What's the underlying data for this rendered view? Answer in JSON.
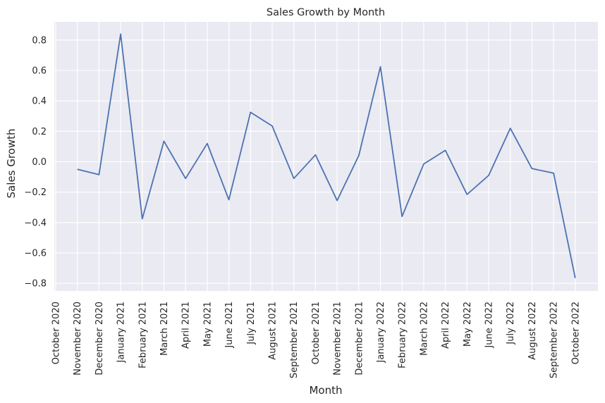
{
  "chart_data": {
    "type": "line",
    "title": "Sales Growth by Month",
    "xlabel": "Month",
    "ylabel": "Sales Growth",
    "grid": true,
    "ylim": [
      -0.85,
      0.92
    ],
    "yticks": [
      "0.8",
      "0.6",
      "0.4",
      "0.2",
      "0.0",
      "−0.2",
      "−0.4",
      "−0.6",
      "−0.8"
    ],
    "ytick_values": [
      0.8,
      0.6,
      0.4,
      0.2,
      0.0,
      -0.2,
      -0.4,
      -0.6,
      -0.8
    ],
    "categories": [
      "October 2020",
      "November 2020",
      "December 2020",
      "January 2021",
      "February 2021",
      "March 2021",
      "April 2021",
      "May 2021",
      "June 2021",
      "July 2021",
      "August 2021",
      "September 2021",
      "October 2021",
      "November 2021",
      "December 2021",
      "January 2022",
      "February 2022",
      "March 2022",
      "April 2022",
      "May 2022",
      "June 2022",
      "July 2022",
      "August 2022",
      "September 2022",
      "October 2022"
    ],
    "series": [
      {
        "color": "#4c72b0",
        "values": [
          null,
          -0.05,
          -0.085,
          0.84,
          -0.375,
          0.135,
          -0.11,
          0.12,
          -0.25,
          0.325,
          0.235,
          -0.11,
          0.045,
          -0.255,
          0.04,
          0.625,
          -0.36,
          -0.015,
          0.075,
          -0.215,
          -0.09,
          0.22,
          -0.045,
          -0.075,
          -0.765
        ]
      }
    ],
    "colors": {
      "background": "#eaeaf2",
      "grid": "#ffffff",
      "text": "#262626"
    }
  }
}
